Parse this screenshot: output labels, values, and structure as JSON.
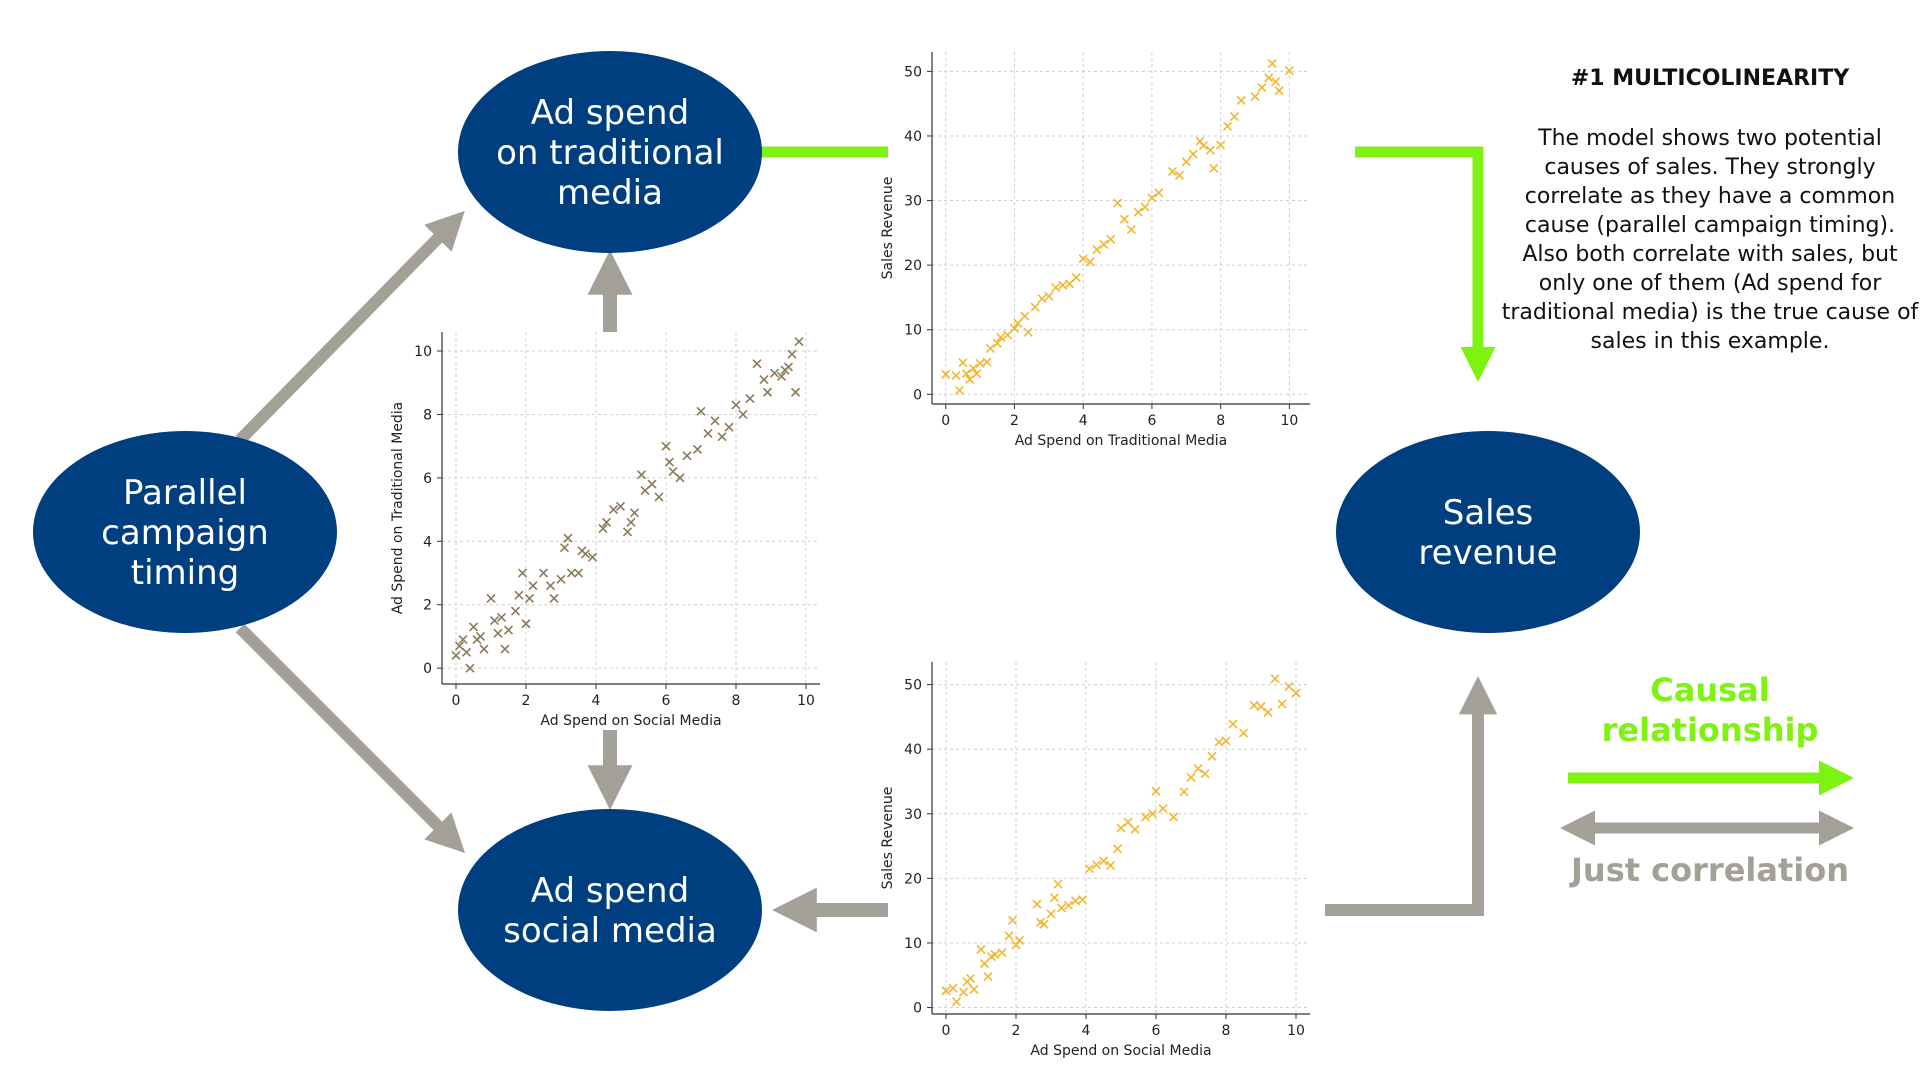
{
  "colors": {
    "node_fill": "#003f7f",
    "causal_arrow": "#7ef211",
    "correlation_arrow": "#a3a097",
    "scatter_brown": "#8c7a5b",
    "scatter_orange": "#f2b632"
  },
  "nodes": {
    "parallel": "Parallel\ncampaign\ntiming",
    "traditional": "Ad spend\non traditional\nmedia",
    "social": "Ad spend\nsocial media",
    "sales": "Sales\nrevenue"
  },
  "title": "#1 MULTICOLINEARITY",
  "description": "The model shows two potential causes of sales. They strongly correlate as they have a common cause (parallel campaign timing). Also both correlate with sales, but only one of them (Ad spend for traditional media) is the true cause of sales in this example.",
  "legend": {
    "causal": "Causal relationship",
    "correlation": "Just correlation"
  },
  "chart_data": [
    {
      "type": "scatter",
      "xlabel": "Ad Spend on Social Media",
      "ylabel": "Ad Spend on Traditional Media",
      "xlim": [
        -0.4,
        10.4
      ],
      "ylim": [
        -0.5,
        10.6
      ],
      "xticks": [
        0,
        2,
        4,
        6,
        8,
        10
      ],
      "yticks": [
        0,
        2,
        4,
        6,
        8,
        10
      ],
      "grid": true,
      "marker": "x",
      "color": "#8c7a5b",
      "points": [
        [
          0.0,
          0.4
        ],
        [
          0.1,
          0.7
        ],
        [
          0.2,
          0.9
        ],
        [
          0.3,
          0.5
        ],
        [
          0.4,
          0.0
        ],
        [
          0.5,
          1.3
        ],
        [
          0.6,
          0.9
        ],
        [
          0.7,
          1.0
        ],
        [
          0.8,
          0.6
        ],
        [
          1.0,
          2.2
        ],
        [
          1.1,
          1.5
        ],
        [
          1.2,
          1.1
        ],
        [
          1.3,
          1.6
        ],
        [
          1.4,
          0.6
        ],
        [
          1.5,
          1.2
        ],
        [
          1.7,
          1.8
        ],
        [
          1.8,
          2.3
        ],
        [
          1.9,
          3.0
        ],
        [
          2.0,
          1.4
        ],
        [
          2.1,
          2.2
        ],
        [
          2.2,
          2.6
        ],
        [
          2.5,
          3.0
        ],
        [
          2.7,
          2.6
        ],
        [
          2.8,
          2.2
        ],
        [
          3.0,
          2.8
        ],
        [
          3.1,
          3.8
        ],
        [
          3.2,
          4.1
        ],
        [
          3.3,
          3.0
        ],
        [
          3.5,
          3.0
        ],
        [
          3.6,
          3.7
        ],
        [
          3.7,
          3.6
        ],
        [
          3.9,
          3.5
        ],
        [
          4.2,
          4.4
        ],
        [
          4.3,
          4.6
        ],
        [
          4.5,
          5.0
        ],
        [
          4.7,
          5.1
        ],
        [
          4.9,
          4.3
        ],
        [
          5.0,
          4.6
        ],
        [
          5.1,
          4.9
        ],
        [
          5.3,
          6.1
        ],
        [
          5.4,
          5.6
        ],
        [
          5.6,
          5.8
        ],
        [
          5.8,
          5.4
        ],
        [
          6.0,
          7.0
        ],
        [
          6.1,
          6.5
        ],
        [
          6.2,
          6.2
        ],
        [
          6.4,
          6.0
        ],
        [
          6.6,
          6.7
        ],
        [
          6.9,
          6.9
        ],
        [
          7.0,
          8.1
        ],
        [
          7.2,
          7.4
        ],
        [
          7.4,
          7.8
        ],
        [
          7.6,
          7.3
        ],
        [
          7.8,
          7.6
        ],
        [
          8.0,
          8.3
        ],
        [
          8.2,
          8.0
        ],
        [
          8.4,
          8.5
        ],
        [
          8.6,
          9.6
        ],
        [
          8.8,
          9.1
        ],
        [
          8.9,
          8.7
        ],
        [
          9.1,
          9.3
        ],
        [
          9.3,
          9.2
        ],
        [
          9.4,
          9.4
        ],
        [
          9.5,
          9.5
        ],
        [
          9.6,
          9.9
        ],
        [
          9.7,
          8.7
        ],
        [
          9.8,
          10.3
        ]
      ]
    },
    {
      "type": "scatter",
      "xlabel": "Ad Spend on Traditional Media",
      "ylabel": "Sales Revenue",
      "xlim": [
        -0.4,
        10.6
      ],
      "ylim": [
        -1.5,
        53.0
      ],
      "xticks": [
        0,
        2,
        4,
        6,
        8,
        10
      ],
      "yticks": [
        0,
        10,
        20,
        30,
        40,
        50
      ],
      "grid": true,
      "marker": "x",
      "color": "#f2b632",
      "points": [
        [
          0.0,
          3.1
        ],
        [
          0.3,
          2.9
        ],
        [
          0.4,
          0.6
        ],
        [
          0.5,
          4.9
        ],
        [
          0.6,
          3.2
        ],
        [
          0.7,
          2.3
        ],
        [
          0.8,
          4.0
        ],
        [
          0.9,
          3.2
        ],
        [
          1.0,
          4.8
        ],
        [
          1.2,
          5.0
        ],
        [
          1.3,
          7.1
        ],
        [
          1.5,
          7.9
        ],
        [
          1.6,
          8.8
        ],
        [
          1.8,
          9.2
        ],
        [
          2.0,
          10.2
        ],
        [
          2.1,
          11.0
        ],
        [
          2.3,
          12.1
        ],
        [
          2.4,
          9.6
        ],
        [
          2.6,
          13.5
        ],
        [
          2.8,
          14.8
        ],
        [
          3.0,
          15.2
        ],
        [
          3.2,
          16.5
        ],
        [
          3.4,
          16.9
        ],
        [
          3.6,
          17.1
        ],
        [
          3.8,
          18.1
        ],
        [
          4.0,
          21.0
        ],
        [
          4.2,
          20.5
        ],
        [
          4.4,
          22.4
        ],
        [
          4.6,
          23.2
        ],
        [
          4.8,
          24.0
        ],
        [
          5.0,
          29.6
        ],
        [
          5.2,
          27.1
        ],
        [
          5.4,
          25.5
        ],
        [
          5.6,
          28.2
        ],
        [
          5.8,
          29.0
        ],
        [
          6.0,
          30.4
        ],
        [
          6.2,
          31.2
        ],
        [
          6.6,
          34.5
        ],
        [
          6.8,
          33.9
        ],
        [
          7.0,
          36.0
        ],
        [
          7.2,
          37.2
        ],
        [
          7.4,
          39.2
        ],
        [
          7.5,
          38.5
        ],
        [
          7.7,
          37.8
        ],
        [
          7.8,
          35.0
        ],
        [
          8.0,
          38.6
        ],
        [
          8.2,
          41.5
        ],
        [
          8.4,
          43.0
        ],
        [
          8.6,
          45.5
        ],
        [
          9.0,
          46.1
        ],
        [
          9.2,
          47.5
        ],
        [
          9.4,
          49.0
        ],
        [
          9.5,
          51.2
        ],
        [
          9.6,
          48.4
        ],
        [
          9.7,
          47.0
        ],
        [
          10.0,
          50.1
        ]
      ]
    },
    {
      "type": "scatter",
      "xlabel": "Ad Spend on Social Media",
      "ylabel": "Sales Revenue",
      "xlim": [
        -0.4,
        10.4
      ],
      "ylim": [
        -1.0,
        53.5
      ],
      "xticks": [
        0,
        2,
        4,
        6,
        8,
        10
      ],
      "yticks": [
        0,
        10,
        20,
        30,
        40,
        50
      ],
      "grid": true,
      "marker": "x",
      "color": "#f2b632",
      "points": [
        [
          0.0,
          2.6
        ],
        [
          0.2,
          3.0
        ],
        [
          0.3,
          0.9
        ],
        [
          0.5,
          2.4
        ],
        [
          0.6,
          4.0
        ],
        [
          0.7,
          4.5
        ],
        [
          0.8,
          2.8
        ],
        [
          1.0,
          9.0
        ],
        [
          1.1,
          6.8
        ],
        [
          1.2,
          4.8
        ],
        [
          1.3,
          7.9
        ],
        [
          1.4,
          8.2
        ],
        [
          1.6,
          8.5
        ],
        [
          1.8,
          11.1
        ],
        [
          1.9,
          13.5
        ],
        [
          2.0,
          9.7
        ],
        [
          2.1,
          10.4
        ],
        [
          2.6,
          16.0
        ],
        [
          2.7,
          13.2
        ],
        [
          2.8,
          12.9
        ],
        [
          3.0,
          14.5
        ],
        [
          3.1,
          17.0
        ],
        [
          3.2,
          19.1
        ],
        [
          3.3,
          15.4
        ],
        [
          3.5,
          15.8
        ],
        [
          3.7,
          16.5
        ],
        [
          3.9,
          16.7
        ],
        [
          4.1,
          21.5
        ],
        [
          4.3,
          22.1
        ],
        [
          4.5,
          22.7
        ],
        [
          4.7,
          22.0
        ],
        [
          4.9,
          24.6
        ],
        [
          5.0,
          27.8
        ],
        [
          5.2,
          28.7
        ],
        [
          5.4,
          27.6
        ],
        [
          5.7,
          29.5
        ],
        [
          5.9,
          30.0
        ],
        [
          6.0,
          33.5
        ],
        [
          6.2,
          30.8
        ],
        [
          6.5,
          29.5
        ],
        [
          6.8,
          33.4
        ],
        [
          7.0,
          35.6
        ],
        [
          7.2,
          37.0
        ],
        [
          7.4,
          36.2
        ],
        [
          7.6,
          38.9
        ],
        [
          7.8,
          41.1
        ],
        [
          8.0,
          41.3
        ],
        [
          8.2,
          43.9
        ],
        [
          8.5,
          42.5
        ],
        [
          8.8,
          46.8
        ],
        [
          9.0,
          46.6
        ],
        [
          9.2,
          45.7
        ],
        [
          9.4,
          50.9
        ],
        [
          9.6,
          47.0
        ],
        [
          9.8,
          49.7
        ],
        [
          10.0,
          48.7
        ]
      ]
    }
  ]
}
